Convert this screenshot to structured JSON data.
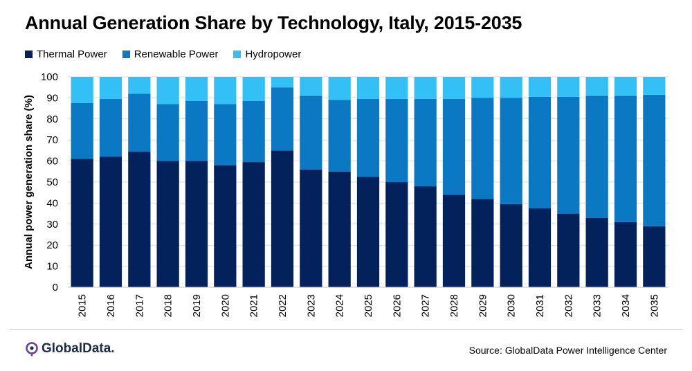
{
  "title": "Annual Generation Share by Technology, Italy, 2015-2035",
  "source": "Source: GlobalData Power Intelligence Center",
  "brand": "GlobalData.",
  "colors": {
    "thermal": "#03225c",
    "renewable": "#0a78c2",
    "hydro": "#33c0f7",
    "brand": "#6b3fa0"
  },
  "chart_data": {
    "type": "bar",
    "stacked": true,
    "ylabel": "Annual power generation share (%)",
    "xlabel": "",
    "ylim": [
      0,
      100
    ],
    "yticks": [
      0,
      10,
      20,
      30,
      40,
      50,
      60,
      70,
      80,
      90,
      100
    ],
    "legend_position": "top-left",
    "grid": true,
    "categories": [
      "2015",
      "2016",
      "2017",
      "2018",
      "2019",
      "2020",
      "2021",
      "2022",
      "2023",
      "2024",
      "2025",
      "2026",
      "2027",
      "2028",
      "2029",
      "2030",
      "2031",
      "2032",
      "2033",
      "2034",
      "2035"
    ],
    "series": [
      {
        "name": "Thermal Power",
        "color": "#03225c",
        "values": [
          61,
          62,
          64.5,
          60,
          60,
          58,
          59.5,
          65,
          56,
          55,
          52.5,
          50,
          48,
          44,
          42,
          39.5,
          37.5,
          35,
          33,
          31,
          29
        ]
      },
      {
        "name": "Renewable Power",
        "color": "#0a78c2",
        "values": [
          26.5,
          27.5,
          27.5,
          27,
          28.5,
          29,
          29,
          30,
          35,
          34,
          37,
          39.5,
          41.5,
          45.5,
          48,
          50.5,
          53,
          55.5,
          58,
          60,
          62.5
        ]
      },
      {
        "name": "Hydropower",
        "color": "#33c0f7",
        "values": [
          12.5,
          10.5,
          8,
          13,
          11.5,
          13,
          11.5,
          5,
          9,
          11,
          10.5,
          10.5,
          10.5,
          10.5,
          10,
          10,
          9.5,
          9.5,
          9,
          9,
          8.5
        ]
      }
    ]
  }
}
